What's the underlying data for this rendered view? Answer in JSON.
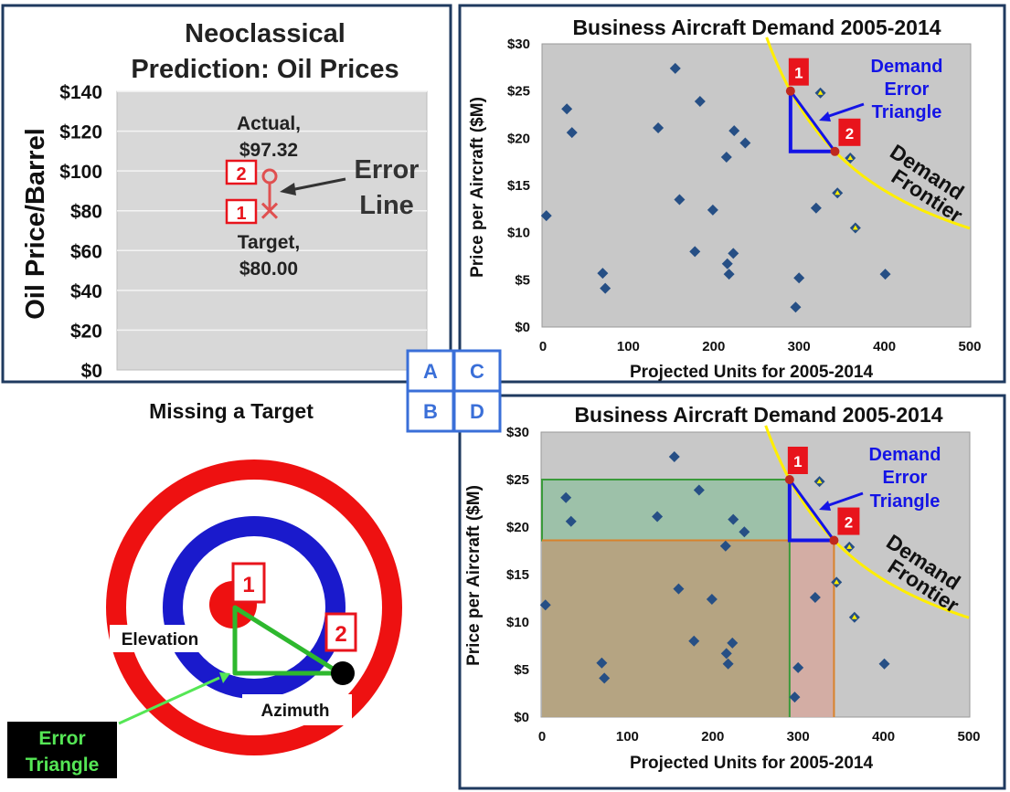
{
  "chart_data": [
    {
      "panel": "A",
      "type": "scatter",
      "title": "Neoclassical Prediction: Oil Prices",
      "title_lines": [
        "Neoclassical",
        "Prediction: Oil Prices"
      ],
      "ylabel": "Oil Price/Barrel",
      "ylim": [
        0,
        140
      ],
      "y_ticks": [
        "$0",
        "$20",
        "$40",
        "$60",
        "$80",
        "$100",
        "$120",
        "$140"
      ],
      "y_tick_values": [
        0,
        20,
        40,
        60,
        80,
        100,
        120,
        140
      ],
      "points": [
        {
          "name": "Actual",
          "y": 97.32,
          "label_lines": [
            "Actual,",
            "$97.32"
          ],
          "marker": "2"
        },
        {
          "name": "Target",
          "y": 80.0,
          "label_lines": [
            "Target,",
            "$80.00"
          ],
          "marker": "1"
        }
      ],
      "annotation_lines": [
        "Error",
        "Line"
      ]
    },
    {
      "panel": "C",
      "type": "scatter",
      "title": "Business Aircraft Demand 2005-2014",
      "xlabel": "Projected Units for 2005-2014",
      "ylabel": "Price per Aircraft ($M)",
      "xlim": [
        0,
        500
      ],
      "ylim": [
        0,
        30
      ],
      "x_ticks": [
        "0",
        "100",
        "200",
        "300",
        "400",
        "500"
      ],
      "x_tick_values": [
        0,
        100,
        200,
        300,
        400,
        500
      ],
      "y_ticks": [
        "$0",
        "$5",
        "$10",
        "$15",
        "$20",
        "$25",
        "$30"
      ],
      "y_tick_values": [
        0,
        5,
        10,
        15,
        20,
        25,
        30
      ],
      "points": [
        {
          "x": 4,
          "y": 11.8
        },
        {
          "x": 28,
          "y": 23.1
        },
        {
          "x": 34,
          "y": 20.6
        },
        {
          "x": 70,
          "y": 5.7
        },
        {
          "x": 73,
          "y": 4.1
        },
        {
          "x": 135,
          "y": 21.1
        },
        {
          "x": 155,
          "y": 27.4
        },
        {
          "x": 160,
          "y": 13.5
        },
        {
          "x": 178,
          "y": 8.0
        },
        {
          "x": 184,
          "y": 23.9
        },
        {
          "x": 199,
          "y": 12.4
        },
        {
          "x": 215,
          "y": 18.0
        },
        {
          "x": 216,
          "y": 6.7
        },
        {
          "x": 218,
          "y": 5.6
        },
        {
          "x": 223,
          "y": 7.8
        },
        {
          "x": 224,
          "y": 20.8
        },
        {
          "x": 237,
          "y": 19.5
        },
        {
          "x": 296,
          "y": 2.1
        },
        {
          "x": 300,
          "y": 5.2
        },
        {
          "x": 320,
          "y": 12.6
        },
        {
          "x": 401,
          "y": 5.6
        }
      ],
      "frontier_points": [
        {
          "x": 325,
          "y": 24.8
        },
        {
          "x": 345,
          "y": 14.2
        },
        {
          "x": 360,
          "y": 17.9
        },
        {
          "x": 366,
          "y": 10.5
        }
      ],
      "frontier_label_lines": [
        "Demand",
        "Frontier"
      ],
      "triangle_label_lines": [
        "Demand",
        "Error",
        "Triangle"
      ],
      "point1": {
        "x": 290,
        "y": 25,
        "marker": "1"
      },
      "point2": {
        "x": 342,
        "y": 18.6,
        "marker": "2"
      }
    },
    {
      "panel": "D",
      "type": "scatter",
      "title": "Business Aircraft Demand 2005-2014",
      "xlabel": "Projected Units for 2005-2014",
      "ylabel": "Price per Aircraft ($M)",
      "xlim": [
        0,
        500
      ],
      "ylim": [
        0,
        30
      ],
      "x_ticks": [
        "0",
        "100",
        "200",
        "300",
        "400",
        "500"
      ],
      "x_tick_values": [
        0,
        100,
        200,
        300,
        400,
        500
      ],
      "y_ticks": [
        "$0",
        "$5",
        "$10",
        "$15",
        "$20",
        "$25",
        "$30"
      ],
      "y_tick_values": [
        0,
        5,
        10,
        15,
        20,
        25,
        30
      ],
      "points": [
        {
          "x": 4,
          "y": 11.8
        },
        {
          "x": 28,
          "y": 23.1
        },
        {
          "x": 34,
          "y": 20.6
        },
        {
          "x": 70,
          "y": 5.7
        },
        {
          "x": 73,
          "y": 4.1
        },
        {
          "x": 135,
          "y": 21.1
        },
        {
          "x": 155,
          "y": 27.4
        },
        {
          "x": 160,
          "y": 13.5
        },
        {
          "x": 178,
          "y": 8.0
        },
        {
          "x": 184,
          "y": 23.9
        },
        {
          "x": 199,
          "y": 12.4
        },
        {
          "x": 215,
          "y": 18.0
        },
        {
          "x": 216,
          "y": 6.7
        },
        {
          "x": 218,
          "y": 5.6
        },
        {
          "x": 223,
          "y": 7.8
        },
        {
          "x": 224,
          "y": 20.8
        },
        {
          "x": 237,
          "y": 19.5
        },
        {
          "x": 296,
          "y": 2.1
        },
        {
          "x": 300,
          "y": 5.2
        },
        {
          "x": 320,
          "y": 12.6
        },
        {
          "x": 401,
          "y": 5.6
        }
      ],
      "frontier_points": [
        {
          "x": 325,
          "y": 24.8
        },
        {
          "x": 345,
          "y": 14.2
        },
        {
          "x": 360,
          "y": 17.9
        },
        {
          "x": 366,
          "y": 10.5
        }
      ],
      "frontier_label_lines": [
        "Demand",
        "Frontier"
      ],
      "triangle_label_lines": [
        "Demand",
        "Error",
        "Triangle"
      ],
      "point1": {
        "x": 290,
        "y": 25,
        "marker": "1"
      },
      "point2": {
        "x": 342,
        "y": 18.6,
        "marker": "2"
      }
    }
  ],
  "panel_b": {
    "title": "Missing a Target",
    "elevation_label": "Elevation",
    "azimuth_label": "Azimuth",
    "error_triangle_lines": [
      "Error",
      "Triangle"
    ],
    "marker1": "1",
    "marker2": "2"
  },
  "legend_grid": [
    "A",
    "C",
    "B",
    "D"
  ],
  "colors": {
    "marker_red": "#e8141c",
    "triangle_blue": "#1414e6",
    "frontier_yellow": "#ffee00",
    "point_blue": "#264f85",
    "panel_border": "#1f3a5f",
    "grid_box_blue": "#3a6fd8",
    "error_green": "#2eb82e",
    "label_green_text": "#55e655"
  }
}
